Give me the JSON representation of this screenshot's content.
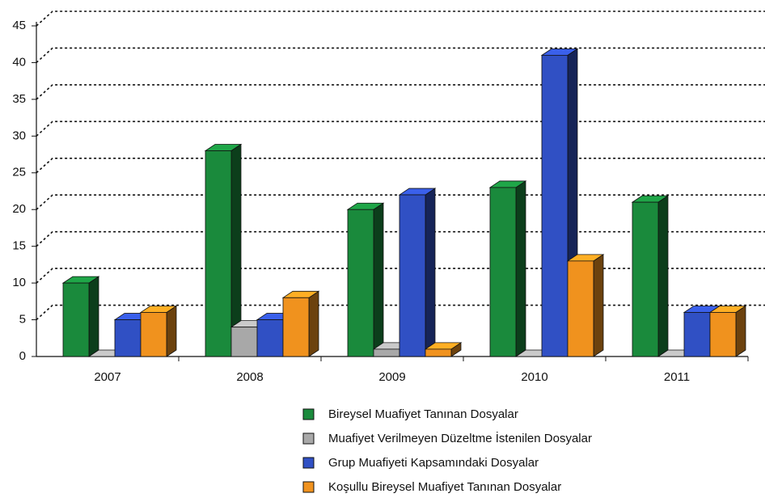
{
  "chart_data": {
    "type": "bar3d",
    "categories": [
      "2007",
      "2008",
      "2009",
      "2010",
      "2011"
    ],
    "series": [
      {
        "name": "Bireysel Muafiyet Tanınan Dosyalar",
        "color": "#1a8a3c",
        "values": [
          10,
          28,
          20,
          23,
          21
        ]
      },
      {
        "name": "Muafiyet Verilmeyen Düzeltme İstenilen Dosyalar",
        "color": "#a8a8a8",
        "values": [
          0,
          4,
          1,
          0,
          0
        ]
      },
      {
        "name": "Grup Muafiyeti Kapsamındaki Dosyalar",
        "color": "#3050c4",
        "values": [
          5,
          5,
          22,
          41,
          6
        ]
      },
      {
        "name": "Koşullu Bireysel Muafiyet Tanınan Dosyalar",
        "color": "#f0921e",
        "values": [
          6,
          8,
          1,
          13,
          6
        ]
      }
    ],
    "ylim": [
      0,
      45
    ],
    "yticks": [
      0,
      5,
      10,
      15,
      20,
      25,
      30,
      35,
      40,
      45
    ],
    "grid": true
  }
}
